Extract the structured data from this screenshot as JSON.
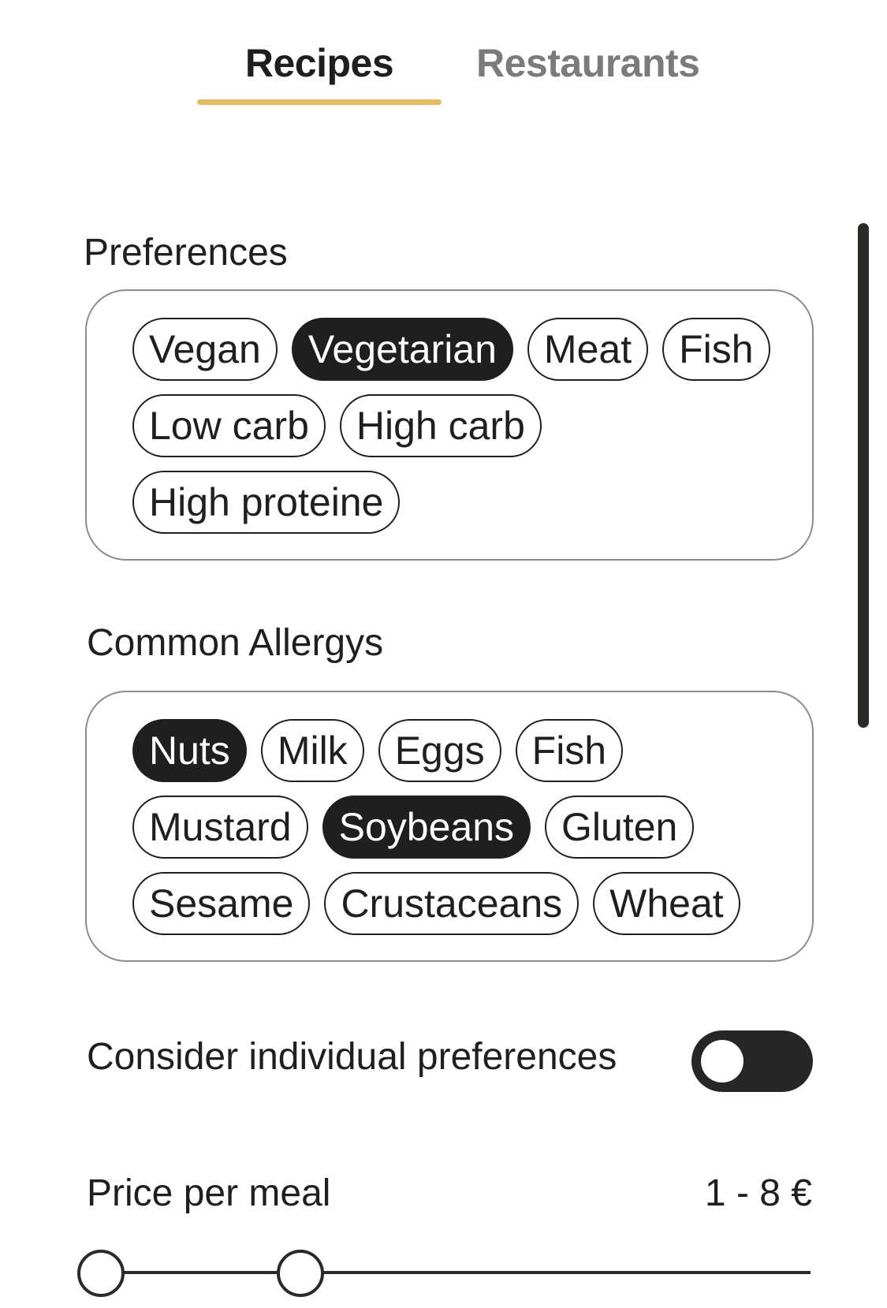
{
  "tabs": [
    {
      "label": "Recipes",
      "active": true
    },
    {
      "label": "Restaurants",
      "active": false
    }
  ],
  "colors": {
    "accent": "#e2bb63",
    "selected_chip": "#1f1f1f",
    "inactive_tab": "#7b7b7b"
  },
  "preferences": {
    "title": "Preferences",
    "chips": [
      {
        "label": "Vegan",
        "selected": false
      },
      {
        "label": "Vegetarian",
        "selected": true
      },
      {
        "label": "Meat",
        "selected": false
      },
      {
        "label": "Fish",
        "selected": false
      },
      {
        "label": "Low carb",
        "selected": false
      },
      {
        "label": "High carb",
        "selected": false
      },
      {
        "label": "High proteine",
        "selected": false
      }
    ]
  },
  "allergies": {
    "title": "Common Allergys",
    "chips": [
      {
        "label": "Nuts",
        "selected": true
      },
      {
        "label": "Milk",
        "selected": false
      },
      {
        "label": "Eggs",
        "selected": false
      },
      {
        "label": "Fish",
        "selected": false
      },
      {
        "label": "Mustard",
        "selected": false
      },
      {
        "label": "Soybeans",
        "selected": true
      },
      {
        "label": "Gluten",
        "selected": false
      },
      {
        "label": "Sesame",
        "selected": false
      },
      {
        "label": "Crustaceans",
        "selected": false
      },
      {
        "label": "Wheat",
        "selected": false
      }
    ]
  },
  "individual_preferences": {
    "label": "Consider individual preferences",
    "enabled": false
  },
  "price": {
    "label": "Price per meal",
    "value_text": "1 - 8 €",
    "min": 1,
    "max": 8,
    "slider_min_fraction": 0.0,
    "slider_max_fraction": 0.275
  }
}
